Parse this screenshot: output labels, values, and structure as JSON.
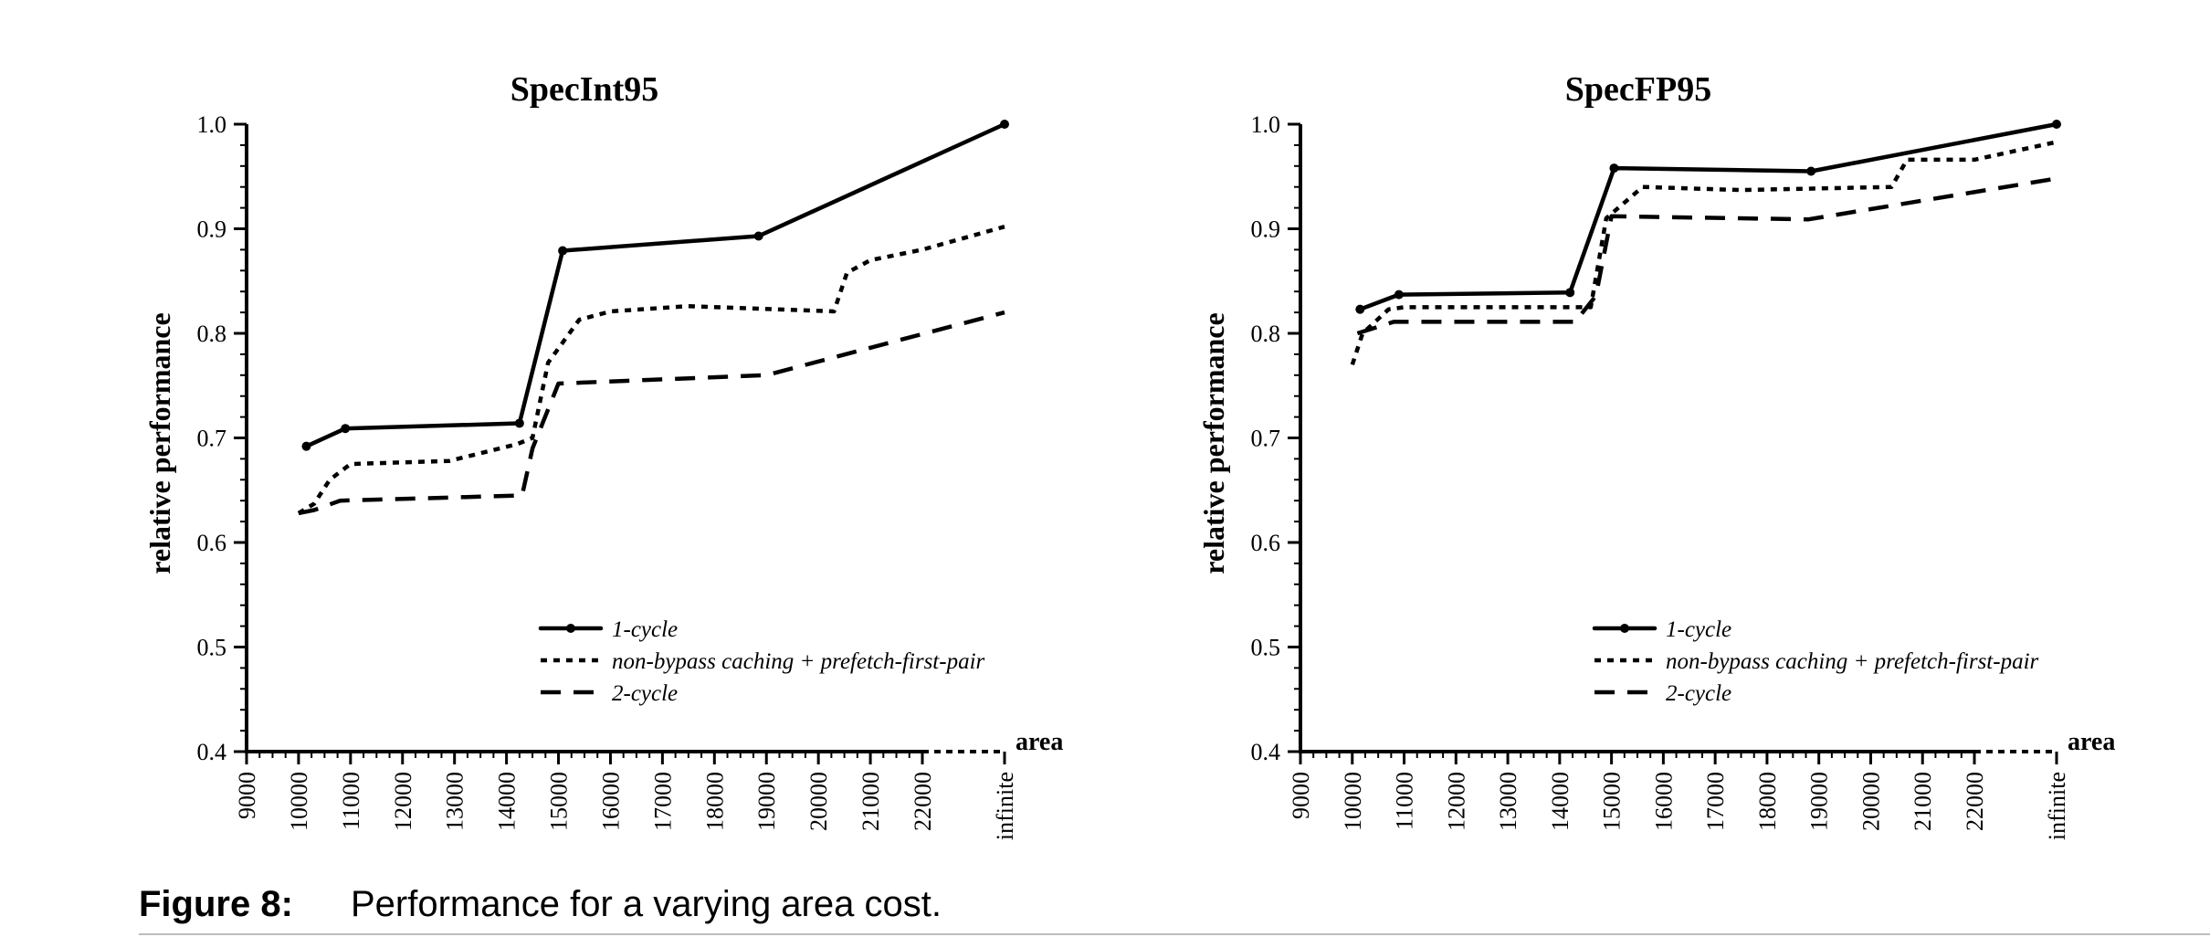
{
  "figure": {
    "label": "Figure 8:",
    "text": "Performance for a varying area cost."
  },
  "chart_data": [
    {
      "type": "line",
      "title": "SpecInt95",
      "ylabel": "relative performance",
      "xlabel": "area",
      "ylim": [
        0.4,
        1.0
      ],
      "yticks": [
        "0.4",
        "0.5",
        "0.6",
        "0.7",
        "0.8",
        "0.9",
        "1.0"
      ],
      "xticks": [
        "9000",
        "10000",
        "11000",
        "12000",
        "13000",
        "14000",
        "15000",
        "16000",
        "17000",
        "18000",
        "19000",
        "20000",
        "21000",
        "22000",
        "infinite"
      ],
      "xlim": [
        9000,
        22000
      ],
      "series": [
        {
          "name": "1-cycle",
          "style": "solid",
          "markers": true,
          "points": [
            [
              10150,
              0.692
            ],
            [
              10900,
              0.709
            ],
            [
              14250,
              0.714
            ],
            [
              15080,
              0.879
            ],
            [
              18850,
              0.893
            ],
            [
              "infinite",
              1.0
            ]
          ]
        },
        {
          "name": "non-bypass caching + prefetch-first-pair",
          "style": "dotted",
          "markers": false,
          "points": [
            [
              10000,
              0.628
            ],
            [
              10300,
              0.637
            ],
            [
              10600,
              0.66
            ],
            [
              11000,
              0.675
            ],
            [
              12900,
              0.678
            ],
            [
              14200,
              0.694
            ],
            [
              14500,
              0.7
            ],
            [
              14800,
              0.772
            ],
            [
              15400,
              0.813
            ],
            [
              16000,
              0.821
            ],
            [
              17500,
              0.826
            ],
            [
              20300,
              0.821
            ],
            [
              20550,
              0.858
            ],
            [
              21000,
              0.87
            ],
            [
              22000,
              0.88
            ],
            [
              "infinite",
              0.902
            ]
          ]
        },
        {
          "name": "2-cycle",
          "style": "dashed",
          "markers": false,
          "points": [
            [
              10000,
              0.628
            ],
            [
              10300,
              0.631
            ],
            [
              10800,
              0.64
            ],
            [
              14300,
              0.645
            ],
            [
              14500,
              0.69
            ],
            [
              15000,
              0.752
            ],
            [
              19000,
              0.76
            ],
            [
              "infinite",
              0.82
            ]
          ]
        }
      ]
    },
    {
      "type": "line",
      "title": "SpecFP95",
      "ylabel": "relative performance",
      "xlabel": "area",
      "ylim": [
        0.4,
        1.0
      ],
      "yticks": [
        "0.4",
        "0.5",
        "0.6",
        "0.7",
        "0.8",
        "0.9",
        "1.0"
      ],
      "xticks": [
        "9000",
        "10000",
        "11000",
        "12000",
        "13000",
        "14000",
        "15000",
        "16000",
        "17000",
        "18000",
        "19000",
        "20000",
        "21000",
        "22000",
        "infinite"
      ],
      "xlim": [
        9000,
        22000
      ],
      "series": [
        {
          "name": "1-cycle",
          "style": "solid",
          "markers": true,
          "points": [
            [
              10150,
              0.823
            ],
            [
              10900,
              0.837
            ],
            [
              14200,
              0.839
            ],
            [
              15050,
              0.958
            ],
            [
              18850,
              0.955
            ],
            [
              "infinite",
              1.0
            ]
          ]
        },
        {
          "name": "non-bypass caching + prefetch-first-pair",
          "style": "dotted",
          "markers": false,
          "points": [
            [
              10000,
              0.77
            ],
            [
              10200,
              0.8
            ],
            [
              10700,
              0.823
            ],
            [
              11000,
              0.825
            ],
            [
              14200,
              0.825
            ],
            [
              14600,
              0.825
            ],
            [
              14900,
              0.91
            ],
            [
              15600,
              0.94
            ],
            [
              17500,
              0.937
            ],
            [
              20400,
              0.94
            ],
            [
              20700,
              0.966
            ],
            [
              22000,
              0.966
            ],
            [
              "infinite",
              0.983
            ]
          ]
        },
        {
          "name": "2-cycle",
          "style": "dashed",
          "markers": false,
          "points": [
            [
              10100,
              0.8
            ],
            [
              10800,
              0.811
            ],
            [
              14300,
              0.811
            ],
            [
              14700,
              0.836
            ],
            [
              15000,
              0.912
            ],
            [
              18800,
              0.909
            ],
            [
              "infinite",
              0.948
            ]
          ]
        }
      ]
    }
  ]
}
